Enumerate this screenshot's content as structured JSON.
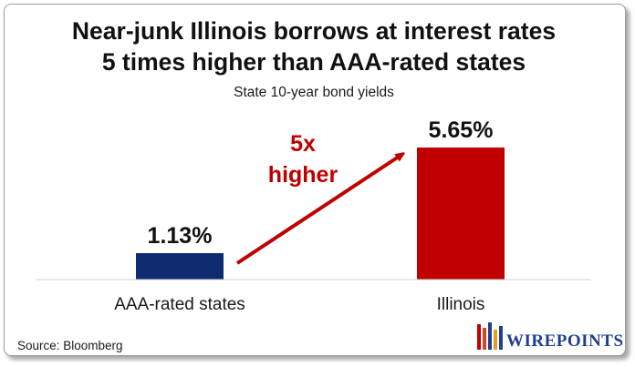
{
  "chart_data": {
    "type": "bar",
    "title_line1": "Near-junk Illinois borrows at interest rates",
    "title_line2": "5 times higher than AAA-rated states",
    "subtitle": "State 10-year bond yields",
    "categories": [
      "AAA-rated states",
      "Illinois"
    ],
    "values": [
      1.13,
      5.65
    ],
    "value_labels": [
      "1.13%",
      "5.65%"
    ],
    "colors": [
      "#0d2b6e",
      "#c00000"
    ],
    "ylim": [
      0,
      5.65
    ],
    "annotation_line1": "5x",
    "annotation_line2": "higher",
    "annotation_color": "#c00000"
  },
  "source": "Source: Bloomberg",
  "logo": {
    "text": "WIREPOINTS",
    "color": "#1f3f8f"
  }
}
